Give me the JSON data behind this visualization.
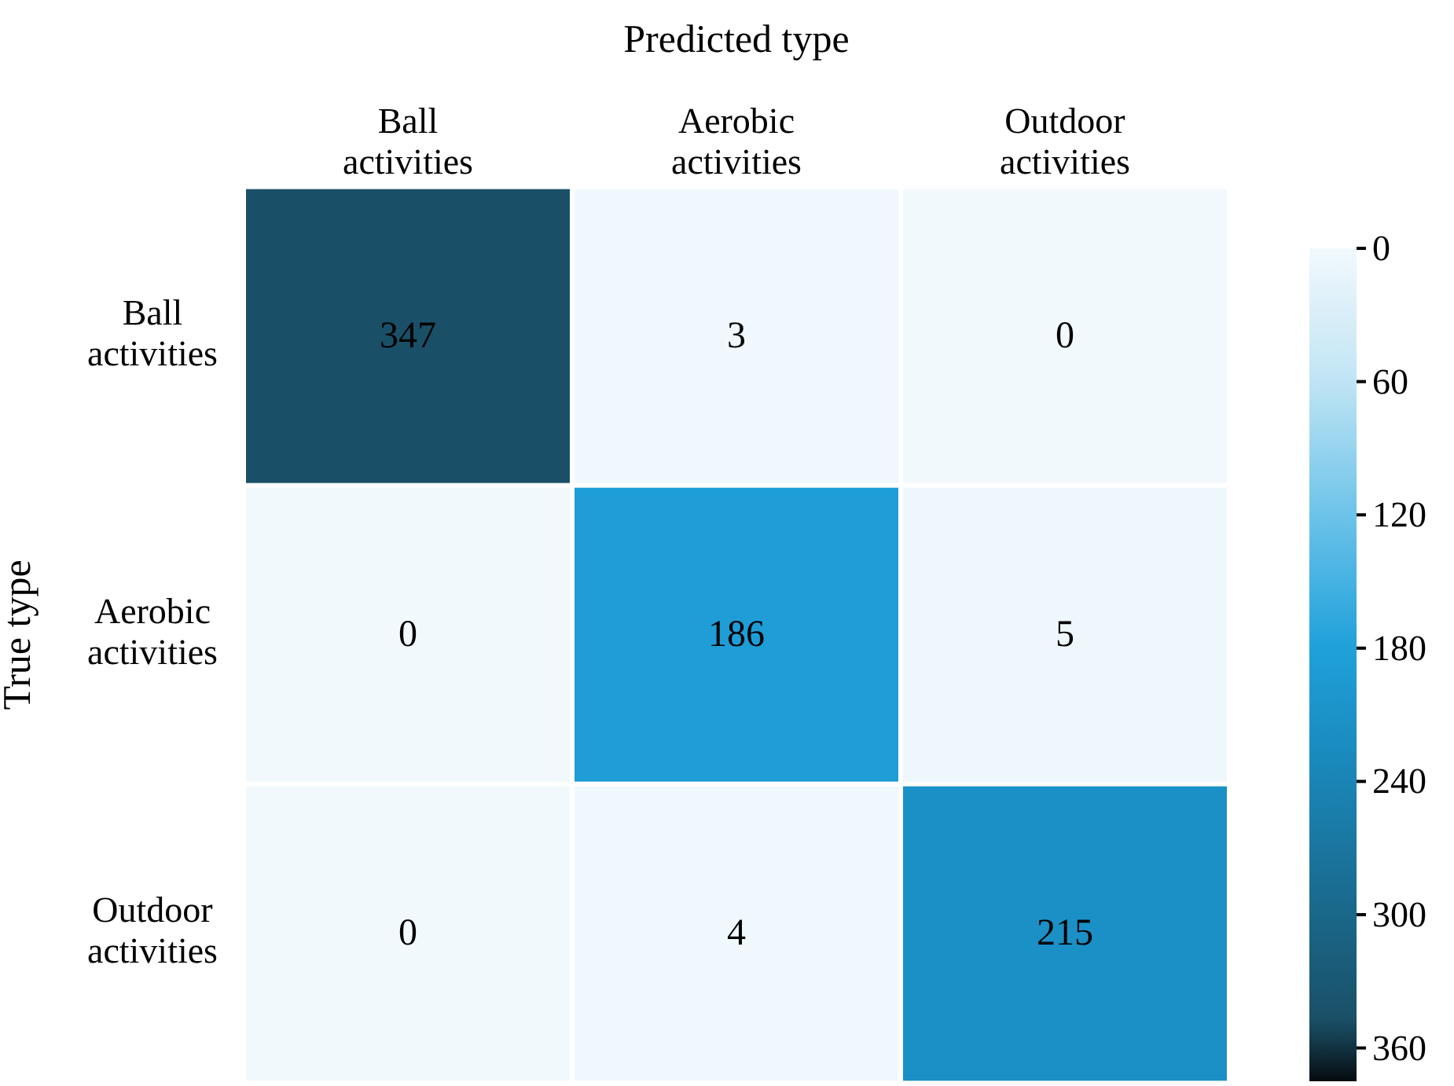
{
  "chart_data": {
    "type": "heatmap",
    "title": "Predicted type",
    "ylabel": "True type",
    "categories": [
      "Ball activities",
      "Aerobic activities",
      "Outdoor activities"
    ],
    "y_categories": [
      "Ball activities",
      "Aerobic activities",
      "Outdoor activities"
    ],
    "cells": [
      [
        347,
        3,
        0
      ],
      [
        0,
        186,
        5
      ],
      [
        0,
        4,
        215
      ]
    ],
    "data_labels": true,
    "clim": [
      0,
      375
    ],
    "cticks": [
      0,
      60,
      120,
      180,
      240,
      300,
      360
    ]
  }
}
